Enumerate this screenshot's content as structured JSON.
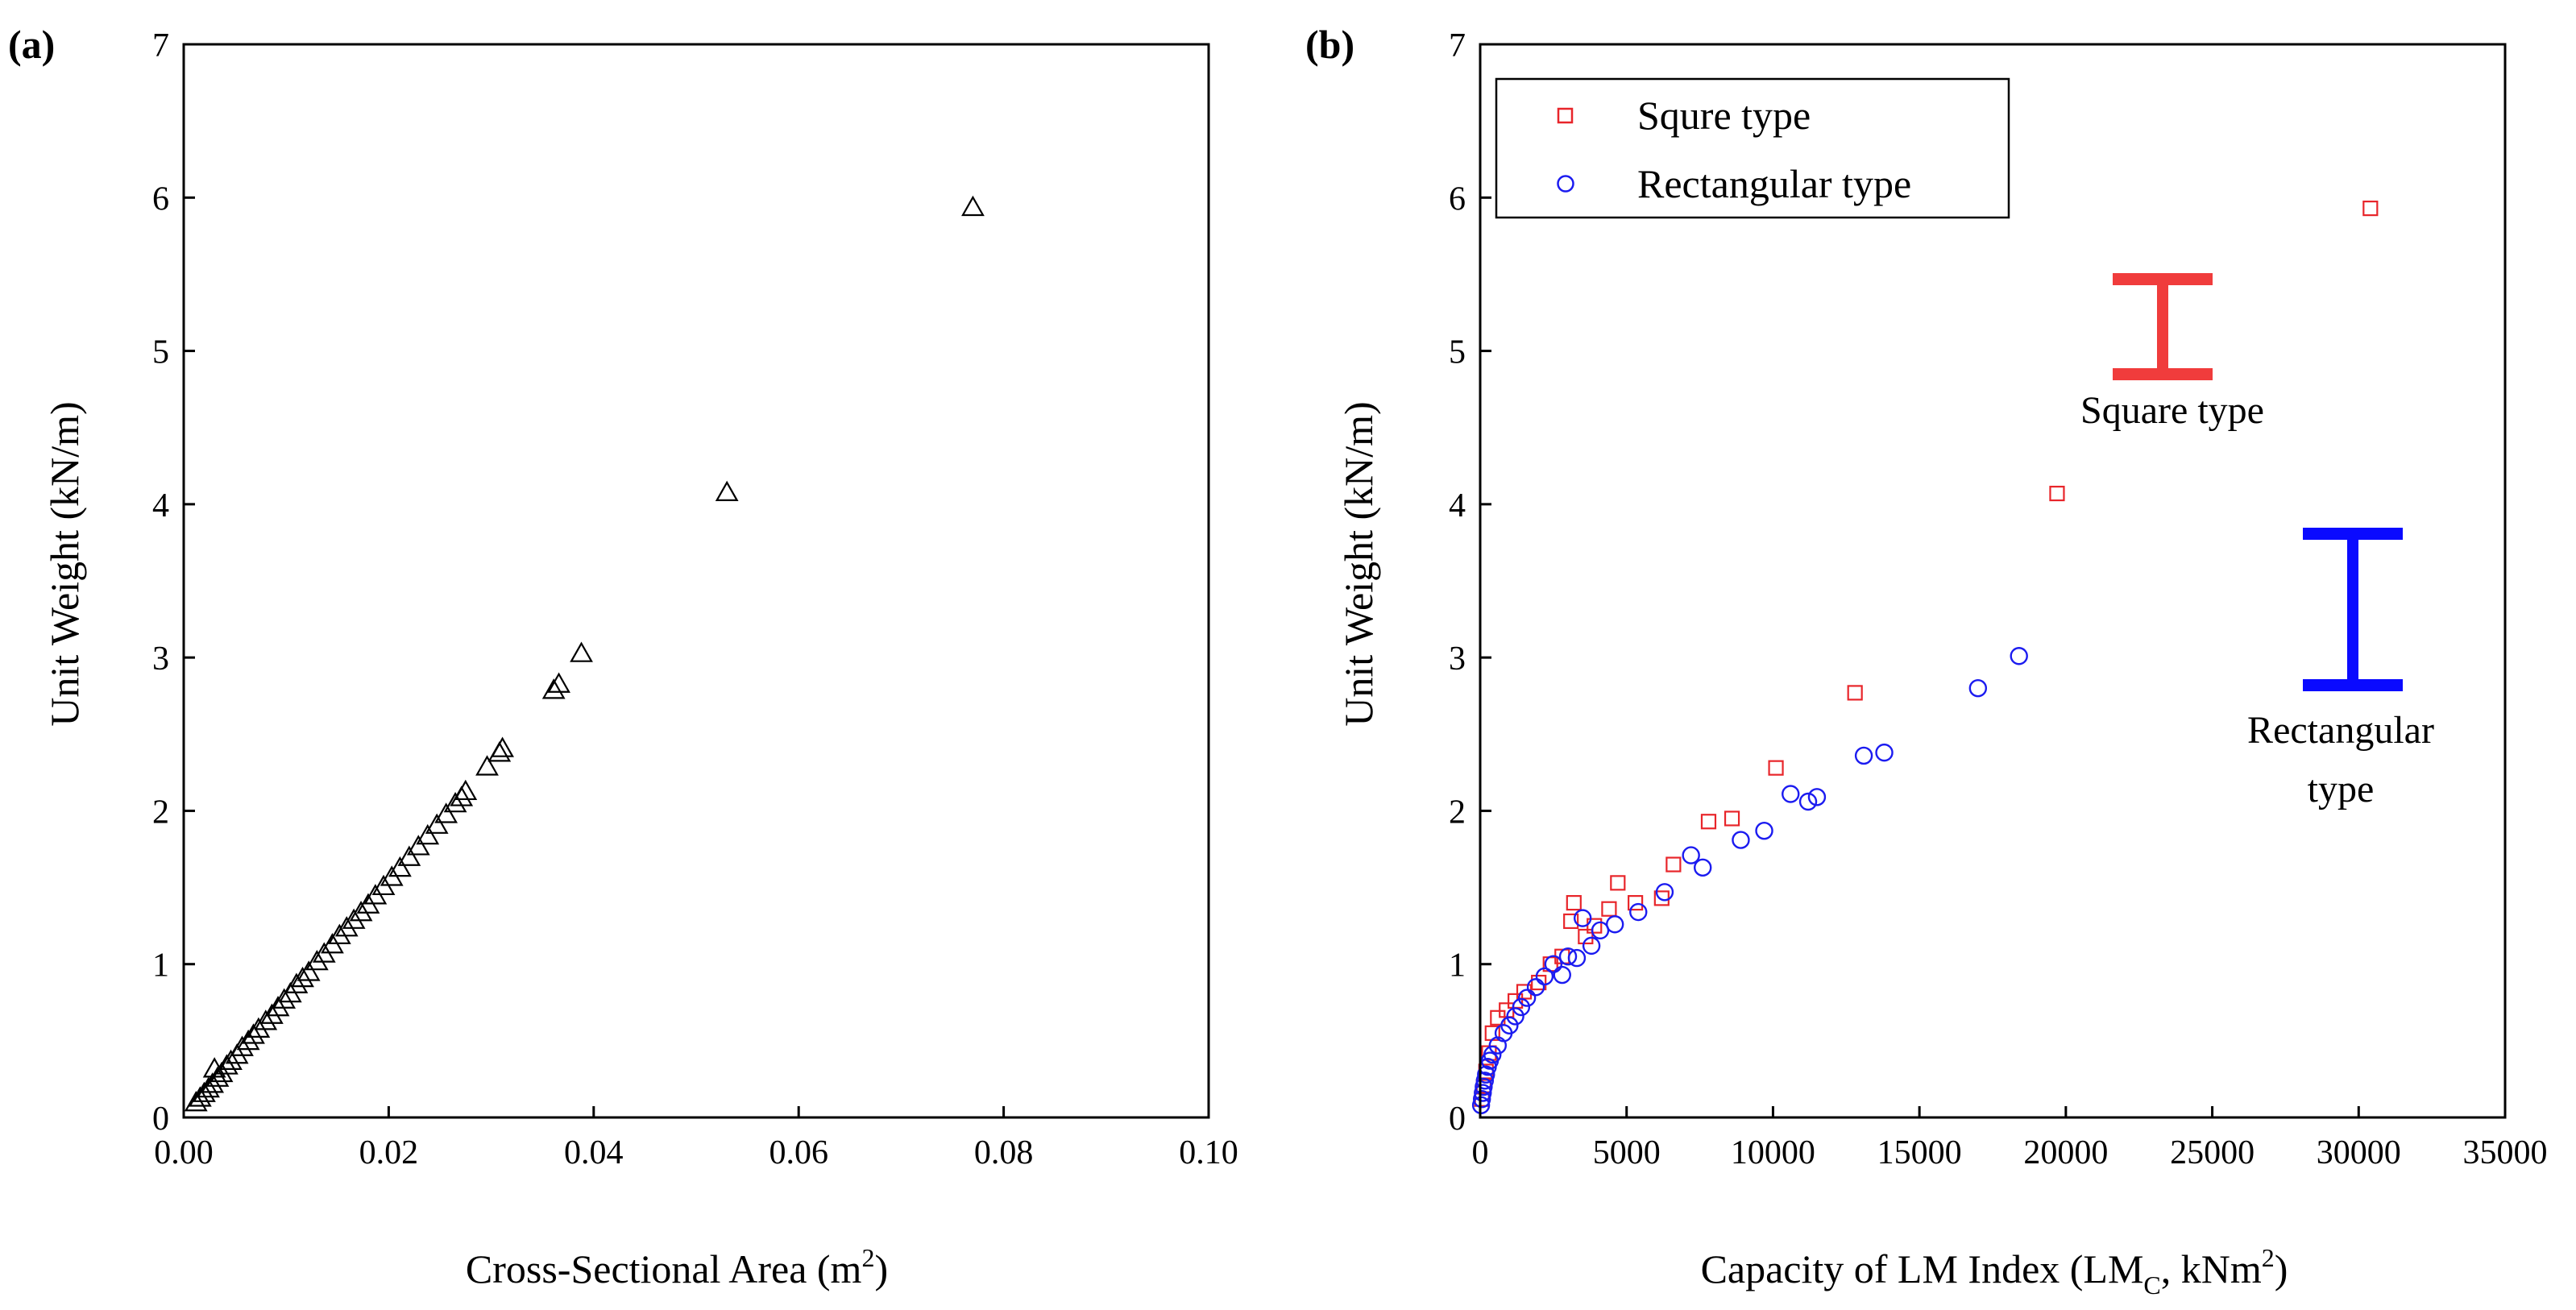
{
  "panels": {
    "a": {
      "label": "(a)"
    },
    "b": {
      "label": "(b)"
    }
  },
  "chart_data": [
    {
      "id": "a",
      "type": "scatter",
      "xlabel": "Cross-Sectional Area (m",
      "xlabel_sup": "2",
      "xlabel_end": ")",
      "ylabel": "Unit Weight (kN/m)",
      "xlim": [
        0,
        0.1
      ],
      "ylim": [
        0,
        7
      ],
      "xticks": [
        "0.00",
        "0.02",
        "0.04",
        "0.06",
        "0.08",
        "0.10"
      ],
      "yticks": [
        "0",
        "1",
        "2",
        "3",
        "4",
        "5",
        "6",
        "7"
      ],
      "grid": false,
      "series": [
        {
          "marker": "triangle",
          "color": "#000000",
          "points": [
            [
              0.0012,
              0.09
            ],
            [
              0.0016,
              0.12
            ],
            [
              0.002,
              0.15
            ],
            [
              0.0024,
              0.18
            ],
            [
              0.0028,
              0.21
            ],
            [
              0.003,
              0.31
            ],
            [
              0.0033,
              0.25
            ],
            [
              0.0037,
              0.28
            ],
            [
              0.0042,
              0.33
            ],
            [
              0.0046,
              0.36
            ],
            [
              0.0052,
              0.4
            ],
            [
              0.0057,
              0.45
            ],
            [
              0.0063,
              0.49
            ],
            [
              0.0068,
              0.53
            ],
            [
              0.0073,
              0.57
            ],
            [
              0.008,
              0.62
            ],
            [
              0.0086,
              0.66
            ],
            [
              0.0092,
              0.71
            ],
            [
              0.0098,
              0.76
            ],
            [
              0.0104,
              0.8
            ],
            [
              0.011,
              0.86
            ],
            [
              0.0116,
              0.9
            ],
            [
              0.0122,
              0.94
            ],
            [
              0.013,
              1.01
            ],
            [
              0.0137,
              1.06
            ],
            [
              0.0145,
              1.12
            ],
            [
              0.0152,
              1.18
            ],
            [
              0.0159,
              1.23
            ],
            [
              0.0166,
              1.28
            ],
            [
              0.0173,
              1.33
            ],
            [
              0.018,
              1.38
            ],
            [
              0.0187,
              1.44
            ],
            [
              0.0195,
              1.5
            ],
            [
              0.0203,
              1.56
            ],
            [
              0.0211,
              1.62
            ],
            [
              0.022,
              1.69
            ],
            [
              0.0229,
              1.76
            ],
            [
              0.0238,
              1.83
            ],
            [
              0.0247,
              1.9
            ],
            [
              0.0256,
              1.97
            ],
            [
              0.0265,
              2.04
            ],
            [
              0.0271,
              2.08
            ],
            [
              0.0275,
              2.12
            ],
            [
              0.0296,
              2.28
            ],
            [
              0.0308,
              2.37
            ],
            [
              0.0311,
              2.4
            ],
            [
              0.0361,
              2.78
            ],
            [
              0.0366,
              2.82
            ],
            [
              0.0388,
              3.02
            ],
            [
              0.053,
              4.07
            ],
            [
              0.077,
              5.93
            ]
          ]
        }
      ]
    },
    {
      "id": "b",
      "type": "scatter",
      "xlabel": "Capacity of LM Index (LM",
      "xlabel_sub": "C",
      "xlabel_mid": ", kNm",
      "xlabel_sup": "2",
      "xlabel_end": ")",
      "ylabel": "Unit Weight (kN/m)",
      "xlim": [
        0,
        35000
      ],
      "ylim": [
        0,
        7
      ],
      "xticks": [
        "0",
        "5000",
        "10000",
        "15000",
        "20000",
        "25000",
        "30000",
        "35000"
      ],
      "yticks": [
        "0",
        "1",
        "2",
        "3",
        "4",
        "5",
        "6",
        "7"
      ],
      "grid": false,
      "legend_position": "top-left",
      "series": [
        {
          "name": "Squre type",
          "marker": "square",
          "color": "#e8252a",
          "points": [
            [
              60,
              0.12
            ],
            [
              120,
              0.2
            ],
            [
              200,
              0.3
            ],
            [
              300,
              0.42
            ],
            [
              420,
              0.55
            ],
            [
              600,
              0.65
            ],
            [
              900,
              0.7
            ],
            [
              1200,
              0.76
            ],
            [
              1500,
              0.82
            ],
            [
              2000,
              0.88
            ],
            [
              2400,
              1.0
            ],
            [
              2800,
              1.05
            ],
            [
              3100,
              1.28
            ],
            [
              3200,
              1.4
            ],
            [
              3600,
              1.18
            ],
            [
              3900,
              1.25
            ],
            [
              4400,
              1.36
            ],
            [
              4700,
              1.53
            ],
            [
              5300,
              1.4
            ],
            [
              6200,
              1.43
            ],
            [
              6600,
              1.65
            ],
            [
              7800,
              1.93
            ],
            [
              8600,
              1.95
            ],
            [
              10100,
              2.28
            ],
            [
              12800,
              2.77
            ],
            [
              19700,
              4.07
            ],
            [
              30400,
              5.93
            ]
          ]
        },
        {
          "name": "Rectangular type",
          "marker": "circle",
          "color": "#1b1bf0",
          "points": [
            [
              30,
              0.08
            ],
            [
              60,
              0.12
            ],
            [
              90,
              0.16
            ],
            [
              120,
              0.2
            ],
            [
              160,
              0.24
            ],
            [
              200,
              0.28
            ],
            [
              260,
              0.33
            ],
            [
              330,
              0.37
            ],
            [
              420,
              0.41
            ],
            [
              600,
              0.47
            ],
            [
              800,
              0.55
            ],
            [
              1000,
              0.6
            ],
            [
              1200,
              0.66
            ],
            [
              1400,
              0.72
            ],
            [
              1600,
              0.78
            ],
            [
              1900,
              0.85
            ],
            [
              2200,
              0.92
            ],
            [
              2500,
              1.0
            ],
            [
              2800,
              0.93
            ],
            [
              3000,
              1.05
            ],
            [
              3300,
              1.04
            ],
            [
              3500,
              1.3
            ],
            [
              3800,
              1.12
            ],
            [
              4100,
              1.22
            ],
            [
              4600,
              1.26
            ],
            [
              5400,
              1.34
            ],
            [
              6300,
              1.47
            ],
            [
              7200,
              1.71
            ],
            [
              7600,
              1.63
            ],
            [
              8900,
              1.81
            ],
            [
              9700,
              1.87
            ],
            [
              10600,
              2.11
            ],
            [
              11200,
              2.06
            ],
            [
              11500,
              2.09
            ],
            [
              13100,
              2.36
            ],
            [
              13800,
              2.38
            ],
            [
              17000,
              2.8
            ],
            [
              18400,
              3.01
            ]
          ]
        }
      ],
      "annotations": [
        {
          "text": "Square type",
          "color": "#f03c3c",
          "shape": "I-beam-square"
        },
        {
          "text": "Rectangular",
          "text2": "type",
          "color": "#0a0aff",
          "shape": "I-beam-rectangular"
        }
      ]
    }
  ]
}
